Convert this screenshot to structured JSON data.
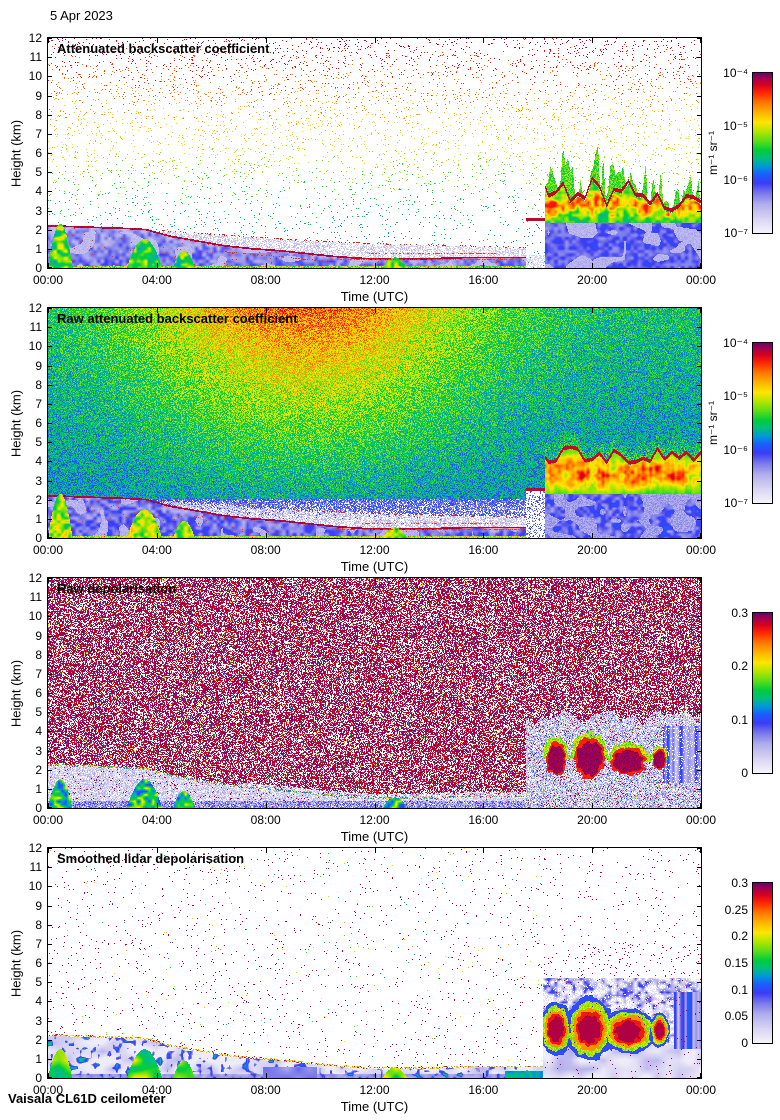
{
  "page": {
    "date_label": "5 Apr 2023",
    "footer": "Vaisala CL61D ceilometer",
    "background": "#ffffff"
  },
  "colors": {
    "axis": "#000000",
    "text": "#000000",
    "colormap": [
      [
        0.0,
        "#ffffff"
      ],
      [
        0.05,
        "#eeecf8"
      ],
      [
        0.12,
        "#d6d2f2"
      ],
      [
        0.2,
        "#b2aeec"
      ],
      [
        0.27,
        "#7878eb"
      ],
      [
        0.33,
        "#3c3cf5"
      ],
      [
        0.38,
        "#1e5aff"
      ],
      [
        0.43,
        "#0096dc"
      ],
      [
        0.48,
        "#00be82"
      ],
      [
        0.53,
        "#00cd3c"
      ],
      [
        0.58,
        "#50dc1e"
      ],
      [
        0.64,
        "#aae600"
      ],
      [
        0.7,
        "#ffe600"
      ],
      [
        0.76,
        "#ffb400"
      ],
      [
        0.82,
        "#ff7800"
      ],
      [
        0.88,
        "#ff2800"
      ],
      [
        0.93,
        "#d70020"
      ],
      [
        0.97,
        "#a00050"
      ],
      [
        1.0,
        "#6e006e"
      ]
    ]
  },
  "chart_data": {
    "type": "heatmap",
    "instrument": "Vaisala CL61D ceilometer",
    "date": "5 Apr 2023",
    "panels": [
      {
        "title": "Attenuated backscatter coefficient",
        "xlabel": "Time (UTC)",
        "ylabel": "Height (km)",
        "x_ticks": [
          "00:00",
          "04:00",
          "08:00",
          "12:00",
          "16:00",
          "20:00",
          "00:00"
        ],
        "x_range_hours": [
          0,
          24
        ],
        "y_ticks": [
          "0",
          "1",
          "2",
          "3",
          "4",
          "5",
          "6",
          "7",
          "8",
          "9",
          "10",
          "11",
          "12"
        ],
        "y_range_km": [
          0,
          12
        ],
        "colorbar": {
          "ticks": [
            "10⁻⁴",
            "10⁻⁵",
            "10⁻⁶",
            "10⁻⁷"
          ],
          "label": "m⁻¹ sr⁻¹",
          "scale": "log",
          "range": [
            1e-07,
            0.0001
          ]
        },
        "render_style": "bs-sparse",
        "render_seed": 101
      },
      {
        "title": "Raw attenuated backscatter coefficient",
        "xlabel": "Time (UTC)",
        "ylabel": "Height (km)",
        "x_ticks": [
          "00:00",
          "04:00",
          "08:00",
          "12:00",
          "16:00",
          "20:00",
          "00:00"
        ],
        "x_range_hours": [
          0,
          24
        ],
        "y_ticks": [
          "0",
          "1",
          "2",
          "3",
          "4",
          "5",
          "6",
          "7",
          "8",
          "9",
          "10",
          "11",
          "12"
        ],
        "y_range_km": [
          0,
          12
        ],
        "colorbar": {
          "ticks": [
            "10⁻⁴",
            "10⁻⁵",
            "10⁻⁶",
            "10⁻⁷"
          ],
          "label": "m⁻¹ sr⁻¹",
          "scale": "log",
          "range": [
            1e-07,
            0.0001
          ]
        },
        "render_style": "bs-raw",
        "render_seed": 202
      },
      {
        "title": "Raw depolarisation",
        "xlabel": "Time (UTC)",
        "ylabel": "Height (km)",
        "x_ticks": [
          "00:00",
          "04:00",
          "08:00",
          "12:00",
          "16:00",
          "20:00",
          "00:00"
        ],
        "x_range_hours": [
          0,
          24
        ],
        "y_ticks": [
          "0",
          "1",
          "2",
          "3",
          "4",
          "5",
          "6",
          "7",
          "8",
          "9",
          "10",
          "11",
          "12"
        ],
        "y_range_km": [
          0,
          12
        ],
        "colorbar": {
          "ticks": [
            "0.3",
            "0.2",
            "0.1",
            "0"
          ],
          "label": "",
          "scale": "linear",
          "range": [
            0,
            0.3
          ]
        },
        "render_style": "depol-raw",
        "render_seed": 303
      },
      {
        "title": "Smoothed lidar depolarisation",
        "xlabel": "Time (UTC)",
        "ylabel": "Height (km)",
        "x_ticks": [
          "00:00",
          "04:00",
          "08:00",
          "12:00",
          "16:00",
          "20:00",
          "00:00"
        ],
        "x_range_hours": [
          0,
          24
        ],
        "y_ticks": [
          "0",
          "1",
          "2",
          "3",
          "4",
          "5",
          "6",
          "7",
          "8",
          "9",
          "10",
          "11",
          "12"
        ],
        "y_range_km": [
          0,
          12
        ],
        "colorbar": {
          "ticks": [
            "0.3",
            "0.25",
            "0.2",
            "0.15",
            "0.1",
            "0.05",
            "0"
          ],
          "label": "",
          "scale": "linear",
          "range": [
            0,
            0.3
          ]
        },
        "render_style": "depol-smooth",
        "render_seed": 404
      }
    ],
    "features": {
      "boundary_layer": {
        "hours": [
          0,
          1,
          2,
          3,
          3.6,
          4.5,
          5.5,
          6.5,
          7.5,
          8.5,
          9.5,
          10.5,
          11.5,
          12.5,
          13.5,
          14.5,
          15.5,
          16.5,
          17.5
        ],
        "top_km": [
          2.25,
          2.2,
          2.15,
          2.1,
          2.05,
          1.7,
          1.45,
          1.2,
          1.05,
          0.95,
          0.8,
          0.65,
          0.55,
          0.5,
          0.5,
          0.55,
          0.6,
          0.6,
          0.6
        ]
      },
      "residual_layer_top_km": {
        "hours": [
          3.6,
          5,
          7,
          9,
          12,
          15,
          17.5
        ],
        "top_km": [
          2.05,
          1.9,
          1.7,
          1.5,
          1.3,
          1.2,
          1.1
        ]
      },
      "surface_plumes": [
        {
          "t0": 0.0,
          "t1": 0.9,
          "top_km": 2.3
        },
        {
          "t0": 2.9,
          "t1": 4.2,
          "top_km": 1.5
        },
        {
          "t0": 4.6,
          "t1": 5.4,
          "top_km": 0.9
        },
        {
          "t0": 12.3,
          "t1": 13.2,
          "top_km": 0.55
        }
      ],
      "liquid_cloud_line": {
        "t0": 17.1,
        "t1": 18.25,
        "h_km": 2.55
      },
      "cloud_band": {
        "t0": 18.25,
        "t1": 24.0,
        "base_km": 2.35,
        "top_km_mean": 3.9,
        "green_top_km_max": 6.5
      },
      "cloud_blobs": [
        {
          "t0": 18.3,
          "t1": 19.05,
          "h0": 1.7,
          "h1": 3.4
        },
        {
          "t0": 19.35,
          "t1": 20.45,
          "h0": 1.55,
          "h1": 3.6
        },
        {
          "t0": 20.7,
          "t1": 21.95,
          "h0": 1.7,
          "h1": 3.15
        },
        {
          "t0": 22.25,
          "t1": 22.7,
          "h0": 1.95,
          "h1": 3.05
        }
      ]
    }
  }
}
